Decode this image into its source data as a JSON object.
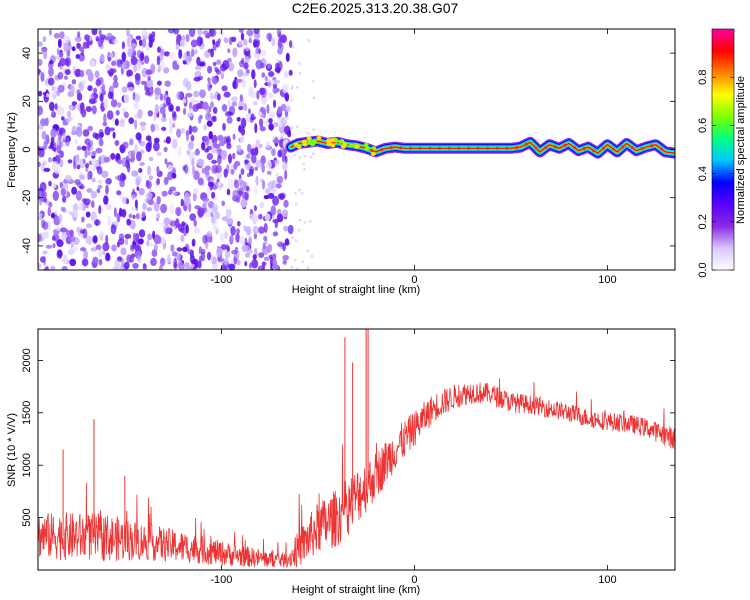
{
  "title": "C2E6.2025.313.20.38.G07",
  "chart_data": [
    {
      "type": "heatmap",
      "xlabel": "Height of straight line (km)",
      "ylabel": "Frequency (Hz)",
      "xlim": [
        -195,
        135
      ],
      "ylim": [
        -50,
        50
      ],
      "xticks": [
        -100,
        0,
        100
      ],
      "xtick_labels": [
        "-100",
        "0",
        "100"
      ],
      "yticks": [
        -40,
        -20,
        0,
        20,
        40
      ],
      "ytick_labels": [
        "-40",
        "-20",
        "0",
        "20",
        "40"
      ],
      "noise_region_x": [
        -195,
        -64
      ],
      "noise_region_y": [
        -50,
        50
      ],
      "signal_ridge": {
        "x": [
          -64,
          -60,
          -55,
          -50,
          -45,
          -40,
          -35,
          -30,
          -25,
          -20,
          -15,
          -10,
          -5,
          0,
          10,
          20,
          30,
          40,
          50,
          55,
          60,
          65,
          70,
          75,
          80,
          85,
          90,
          95,
          100,
          105,
          110,
          115,
          120,
          125,
          130,
          135
        ],
        "y": [
          1.0,
          2.5,
          3.0,
          3.5,
          2.5,
          3.0,
          2.0,
          1.5,
          0.5,
          -1.0,
          0.5,
          1.0,
          0.5,
          0.5,
          0.5,
          0.5,
          0.5,
          0.5,
          0.5,
          1.0,
          3.0,
          -1.0,
          2.0,
          0.5,
          2.5,
          -0.5,
          1.0,
          -1.5,
          2.0,
          -1.0,
          2.5,
          -0.5,
          1.0,
          2.0,
          -1.0,
          -1.5
        ]
      },
      "colorbar": {
        "label": "Normalized spectral amplitude",
        "range": [
          0,
          1
        ],
        "ticks": [
          0.0,
          0.2,
          0.4,
          0.6,
          0.8
        ],
        "tick_labels": [
          "0.0",
          "0.2",
          "0.4",
          "0.6",
          "0.8"
        ],
        "colormap": [
          "#ffffff",
          "#d9c6ff",
          "#8a2be2",
          "#5a00ff",
          "#0000ff",
          "#00c8ff",
          "#00ff80",
          "#80ff00",
          "#ffff00",
          "#ff8000",
          "#ff0000",
          "#ff00a0"
        ]
      }
    },
    {
      "type": "line",
      "color": "#ee3333",
      "xlabel": "Height of straight line (km)",
      "ylabel": "SNR (10 * V/V)",
      "xlim": [
        -195,
        135
      ],
      "ylim": [
        0,
        2300
      ],
      "xticks": [
        -100,
        0,
        100
      ],
      "xtick_labels": [
        "-100",
        "0",
        "100"
      ],
      "yticks": [
        500,
        1000,
        1500,
        2000
      ],
      "ytick_labels": [
        "500",
        "1000",
        "1500",
        "2000"
      ],
      "baseline": {
        "x": [
          -195,
          -180,
          -160,
          -140,
          -120,
          -100,
          -80,
          -66,
          -60,
          -50,
          -40,
          -30,
          -20,
          -10,
          0,
          10,
          20,
          30,
          40,
          50,
          60,
          70,
          80,
          90,
          100,
          110,
          120,
          135
        ],
        "y": [
          330,
          320,
          310,
          270,
          220,
          160,
          110,
          90,
          200,
          400,
          500,
          700,
          900,
          1150,
          1350,
          1550,
          1650,
          1700,
          1680,
          1600,
          1580,
          1540,
          1500,
          1450,
          1420,
          1400,
          1360,
          1250
        ],
        "spread": [
          220,
          230,
          230,
          180,
          150,
          120,
          90,
          70,
          180,
          250,
          280,
          280,
          230,
          200,
          170,
          140,
          120,
          110,
          100,
          100,
          90,
          90,
          90,
          90,
          90,
          90,
          90,
          110
        ]
      },
      "spikes": [
        {
          "x": -182,
          "y": 1150
        },
        {
          "x": -166,
          "y": 1440
        },
        {
          "x": -150,
          "y": 900
        },
        {
          "x": -36,
          "y": 2220
        },
        {
          "x": -32,
          "y": 1980
        },
        {
          "x": -25,
          "y": 2300
        },
        {
          "x": -24,
          "y": 2300
        }
      ]
    }
  ]
}
